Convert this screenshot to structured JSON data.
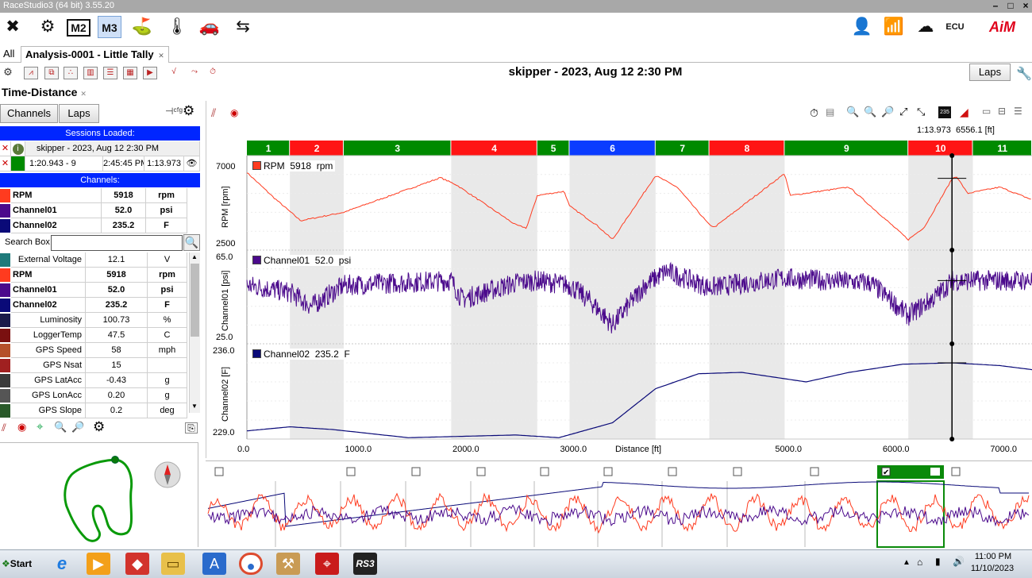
{
  "window": {
    "title": "RaceStudio3 (64 bit) 3.55.20"
  },
  "colors": {
    "rpm": "#ff3b1f",
    "channel01": "#4b0a8c",
    "channel02": "#0a0a78",
    "accent_blue": "#0026ff",
    "lap_green": "#008a00",
    "lap_red": "#ff1414",
    "lap_blue": "#0b3cff"
  },
  "tabs": {
    "all": "All",
    "analysis": "Analysis-0001 - Little Tally"
  },
  "header": {
    "session_title": "skipper - 2023, Aug 12 2:30 PM",
    "laps_button": "Laps"
  },
  "view": {
    "title": "Time-Distance"
  },
  "left_panel": {
    "channels_tab": "Channels",
    "laps_tab": "Laps",
    "sessions_loaded_label": "Sessions Loaded:",
    "session_name": "skipper - 2023, Aug 12 2:30 PM",
    "lap_time_best": "1:20.943 - 9",
    "lap_clock": "2:45:45 PM",
    "lap_current": "1:13.973",
    "channels_label": "Channels:",
    "selected_channels": [
      {
        "name": "RPM",
        "value": "5918",
        "unit": "rpm",
        "color": "#ff3b1f"
      },
      {
        "name": "Channel01",
        "value": "52.0",
        "unit": "psi",
        "color": "#4b0a8c"
      },
      {
        "name": "Channel02",
        "value": "235.2",
        "unit": "F",
        "color": "#0a0a78"
      }
    ],
    "search_label": "Search Box",
    "channel_list": [
      {
        "name": "External Voltage",
        "value": "12.1",
        "unit": "V",
        "color": "#1f7a7a",
        "bold": false
      },
      {
        "name": "RPM",
        "value": "5918",
        "unit": "rpm",
        "color": "#ff3b1f",
        "bold": true
      },
      {
        "name": "Channel01",
        "value": "52.0",
        "unit": "psi",
        "color": "#4b0a8c",
        "bold": true
      },
      {
        "name": "Channel02",
        "value": "235.2",
        "unit": "F",
        "color": "#0a0a78",
        "bold": true
      },
      {
        "name": "Luminosity",
        "value": "100.73",
        "unit": "%",
        "color": "#1a1a4a",
        "bold": false
      },
      {
        "name": "LoggerTemp",
        "value": "47.5",
        "unit": "C",
        "color": "#7a1010",
        "bold": false
      },
      {
        "name": "GPS Speed",
        "value": "58",
        "unit": "mph",
        "color": "#b5502a",
        "bold": false
      },
      {
        "name": "GPS Nsat",
        "value": "15",
        "unit": "",
        "color": "#a02020",
        "bold": false
      },
      {
        "name": "GPS LatAcc",
        "value": "-0.43",
        "unit": "g",
        "color": "#3a3a3a",
        "bold": false
      },
      {
        "name": "GPS LonAcc",
        "value": "0.20",
        "unit": "g",
        "color": "#555555",
        "bold": false
      },
      {
        "name": "GPS Slope",
        "value": "0.2",
        "unit": "deg",
        "color": "#2a5a2a",
        "bold": false
      }
    ]
  },
  "cursor_readout": {
    "time": "1:13.973",
    "distance": "6556.1",
    "unit": "[ft]"
  },
  "laps": [
    {
      "label": "1",
      "color": "green"
    },
    {
      "label": "2",
      "color": "red"
    },
    {
      "label": "3",
      "color": "green"
    },
    {
      "label": "4",
      "color": "red"
    },
    {
      "label": "5",
      "color": "green"
    },
    {
      "label": "6",
      "color": "blue"
    },
    {
      "label": "7",
      "color": "green"
    },
    {
      "label": "8",
      "color": "red"
    },
    {
      "label": "9",
      "color": "green"
    },
    {
      "label": "10",
      "color": "red"
    },
    {
      "label": "11",
      "color": "green"
    }
  ],
  "lap_boundaries_ft": [
    0,
    400,
    900,
    1900,
    2700,
    3000,
    3800,
    4300,
    5000,
    6150,
    6750,
    7300
  ],
  "plots": {
    "rpm": {
      "legend_name": "RPM",
      "legend_value": "5918",
      "legend_unit": "rpm",
      "ylabel": "RPM [rpm]",
      "ymax": "7000",
      "ymin": "2500"
    },
    "channel01": {
      "legend_name": "Channel01",
      "legend_value": "52.0",
      "legend_unit": "psi",
      "ylabel": "Channel01 [psi]",
      "ymax": "65.0",
      "ymin": "25.0"
    },
    "channel02": {
      "legend_name": "Channel02",
      "legend_value": "235.2",
      "legend_unit": "F",
      "ylabel": "Channel02 [F]",
      "ymax": "236.0",
      "ymin": "229.0"
    }
  },
  "xaxis": {
    "label": "Distance [ft]",
    "ticks": [
      "0.0",
      "1000.0",
      "2000.0",
      "3000.0",
      "5000.0",
      "6000.0",
      "7000.0"
    ]
  },
  "overview_zoom_value": "235",
  "taskbar": {
    "start": "Start",
    "time": "11:00 PM",
    "date": "11/10/2023"
  }
}
